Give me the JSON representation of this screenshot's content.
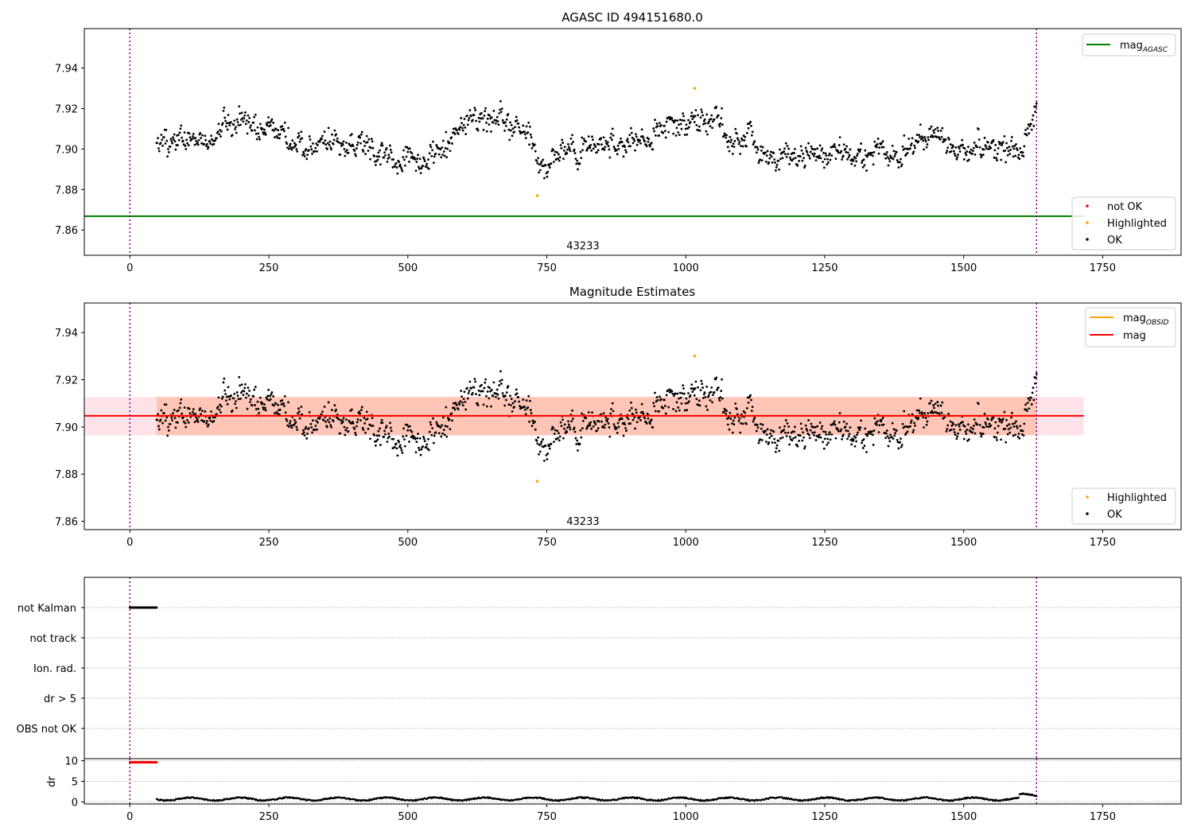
{
  "figure": {
    "background": "#ffffff"
  },
  "colors": {
    "ok": "#000000",
    "highlighted": "#ffa500",
    "not_ok": "#ff0000",
    "mag_agasc_line": "#008000",
    "mag_obsid_line": "#ffa500",
    "mag_line": "#ff0000",
    "mag_band_fill": "#ffc0cb",
    "obsid_band_fill": "#ffa07a",
    "obsid_boundary": "#800080",
    "grid": "#b0b0b0"
  },
  "chart_data": [
    {
      "id": "agasc",
      "type": "scatter",
      "title": "AGASC ID 494151680.0",
      "xlim": [
        -82,
        1891
      ],
      "ylim": [
        7.8475,
        7.9595
      ],
      "xticks": [
        0,
        250,
        500,
        750,
        1000,
        1250,
        1500,
        1750
      ],
      "yticks": [
        7.86,
        7.88,
        7.9,
        7.92,
        7.94
      ],
      "obsid_label": {
        "text": "43233",
        "x": 815,
        "y": 7.8505
      },
      "obsid_boundaries": [
        0,
        1631
      ],
      "mag_agasc": 7.8668,
      "highlighted_points": [
        {
          "x": 733,
          "y": 7.877
        },
        {
          "x": 1016,
          "y": 7.93
        }
      ],
      "ok_profile": {
        "x_start": 48,
        "x_end": 1631,
        "n_points": 1290,
        "scatter_sd": 0.0052,
        "knots_x": [
          48,
          150,
          170,
          250,
          300,
          350,
          400,
          450,
          480,
          550,
          600,
          640,
          700,
          720,
          740,
          780,
          850,
          930,
          1000,
          1020,
          1100,
          1150,
          1200,
          1300,
          1400,
          1440,
          1500,
          1600,
          1631
        ],
        "knots_y": [
          7.905,
          7.905,
          7.912,
          7.913,
          7.903,
          7.903,
          7.905,
          7.898,
          7.895,
          7.898,
          7.914,
          7.916,
          7.911,
          7.903,
          7.892,
          7.899,
          7.903,
          7.907,
          7.91,
          7.915,
          7.905,
          7.898,
          7.897,
          7.897,
          7.899,
          7.908,
          7.899,
          7.902,
          7.917
        ]
      },
      "legend_lines": [
        {
          "label": "mag",
          "sub": "AGASC",
          "color": "#008000"
        }
      ],
      "legend_points": [
        {
          "label": "not OK",
          "color": "#ff0000"
        },
        {
          "label": "Highlighted",
          "color": "#ffa500"
        },
        {
          "label": "OK",
          "color": "#000000"
        }
      ]
    },
    {
      "id": "magest",
      "type": "scatter",
      "title": "Magnitude Estimates",
      "xlim": [
        -82,
        1891
      ],
      "ylim": [
        7.8565,
        7.9525
      ],
      "xticks": [
        0,
        250,
        500,
        750,
        1000,
        1250,
        1500,
        1750
      ],
      "yticks": [
        7.86,
        7.88,
        7.9,
        7.92,
        7.94
      ],
      "obsid_label": {
        "text": "43233",
        "x": 815,
        "y": 7.8585
      },
      "obsid_boundaries": [
        0,
        1631
      ],
      "mag": 7.9047,
      "mag_band": [
        7.8965,
        7.9127
      ],
      "mag_obsid": 7.9047,
      "mag_obsid_band": [
        7.8965,
        7.9127
      ],
      "highlighted_points": [
        {
          "x": 733,
          "y": 7.877
        },
        {
          "x": 1016,
          "y": 7.93
        }
      ],
      "legend_lines": [
        {
          "label": "mag",
          "sub": "OBSID",
          "color": "#ffa500"
        },
        {
          "label": "mag",
          "sub": "",
          "color": "#ff0000"
        }
      ],
      "legend_points": [
        {
          "label": "Highlighted",
          "color": "#ffa500"
        },
        {
          "label": "OK",
          "color": "#000000"
        }
      ]
    },
    {
      "id": "flags",
      "type": "scatter",
      "categories": [
        "not Kalman",
        "not track",
        "Ion. rad.",
        "dr > 5",
        "OBS not OK"
      ],
      "xlim": [
        -82,
        1891
      ],
      "xticks": [
        0,
        250,
        500,
        750,
        1000,
        1250,
        1500,
        1750
      ],
      "obsid_boundaries": [
        0,
        1631
      ],
      "flag_points": {
        "category": "not Kalman",
        "x_start": 0,
        "x_end": 48,
        "n_points": 48
      }
    },
    {
      "id": "dr",
      "type": "scatter",
      "ylabel": "dr",
      "xlim": [
        -82,
        1891
      ],
      "ylim": [
        -0.5,
        10.5
      ],
      "xticks": [
        0,
        250,
        500,
        750,
        1000,
        1250,
        1500,
        1750
      ],
      "yticks": [
        0,
        5,
        10
      ],
      "obsid_boundaries": [
        0,
        1631
      ],
      "clipped_points": {
        "x_start": 0,
        "x_end": 48,
        "y": 9.6,
        "color": "#ff0000"
      },
      "ok_profile": {
        "x_start": 48,
        "x_end": 1631,
        "n_points": 1290,
        "mean": 0.7,
        "sd": 0.3,
        "wiggle": 0.35
      }
    }
  ]
}
